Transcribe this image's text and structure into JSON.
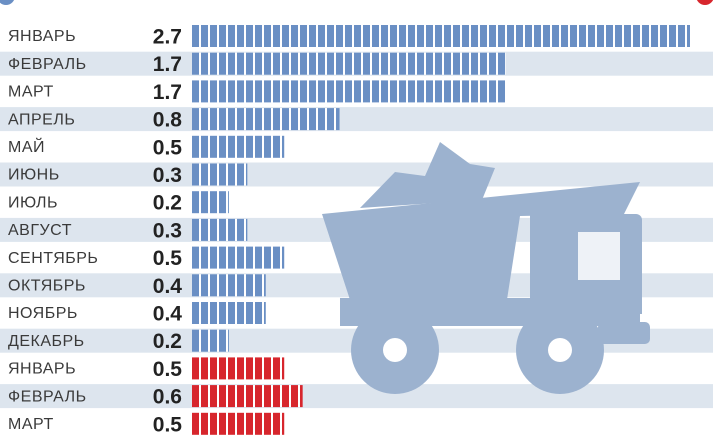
{
  "chart_data": {
    "type": "bar",
    "orientation": "horizontal",
    "categories": [
      "ЯНВАРЬ",
      "ФЕВРАЛЬ",
      "МАРТ",
      "АПРЕЛЬ",
      "МАЙ",
      "ИЮНЬ",
      "ИЮЛЬ",
      "АВГУСТ",
      "СЕНТЯБРЬ",
      "ОКТЯБРЬ",
      "НОЯБРЬ",
      "ДЕКАБРЬ",
      "ЯНВАРЬ",
      "ФЕВРАЛЬ",
      "МАРТ"
    ],
    "values": [
      2.7,
      1.7,
      1.7,
      0.8,
      0.5,
      0.3,
      0.2,
      0.3,
      0.5,
      0.4,
      0.4,
      0.2,
      0.5,
      0.6,
      0.5
    ],
    "colors": [
      "#6a8fc4",
      "#6a8fc4",
      "#6a8fc4",
      "#6a8fc4",
      "#6a8fc4",
      "#6a8fc4",
      "#6a8fc4",
      "#6a8fc4",
      "#6a8fc4",
      "#6a8fc4",
      "#6a8fc4",
      "#6a8fc4",
      "#d7262d",
      "#d7262d",
      "#d7262d"
    ]
  }
}
